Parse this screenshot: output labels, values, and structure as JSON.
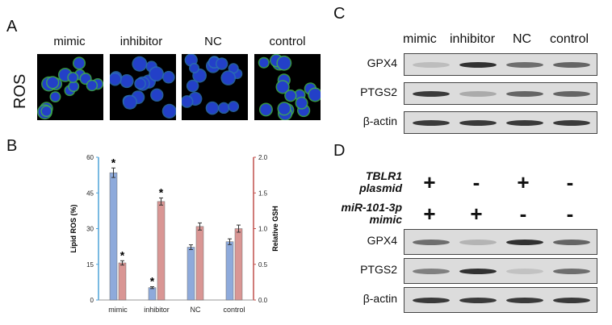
{
  "panel_a": {
    "letter": "A",
    "row_label": "ROS",
    "columns": [
      "mimic",
      "inhibitor",
      "NC",
      "control"
    ]
  },
  "panel_b": {
    "letter": "B"
  },
  "panel_c": {
    "letter": "C",
    "columns": [
      "mimic",
      "inhibitor",
      "NC",
      "control"
    ],
    "rows": [
      {
        "label": "GPX4",
        "band_intensity": [
          0.15,
          0.95,
          0.6,
          0.65
        ]
      },
      {
        "label": "PTGS2",
        "band_intensity": [
          0.9,
          0.25,
          0.65,
          0.65
        ]
      },
      {
        "label": "β-actin",
        "band_intensity": [
          0.9,
          0.9,
          0.9,
          0.9
        ]
      }
    ]
  },
  "panel_d": {
    "letter": "D",
    "conditions": [
      {
        "label_line1": "TBLR1",
        "label_line2": "plasmid",
        "signs": [
          "+",
          "-",
          "+",
          "-"
        ]
      },
      {
        "label_line1": "miR-101-3p",
        "label_line2": "mimic",
        "signs": [
          "+",
          "+",
          "-",
          "-"
        ]
      }
    ],
    "rows": [
      {
        "label": "GPX4",
        "band_intensity": [
          0.6,
          0.2,
          0.95,
          0.65
        ]
      },
      {
        "label": "PTGS2",
        "band_intensity": [
          0.5,
          0.95,
          0.12,
          0.6
        ]
      },
      {
        "label": "β-actin",
        "band_intensity": [
          0.9,
          0.9,
          0.9,
          0.9
        ]
      }
    ]
  },
  "chart_data": {
    "type": "bar",
    "categories": [
      "mimic",
      "inhibitor",
      "NC",
      "control"
    ],
    "series": [
      {
        "values": [
          53.5,
          5.2,
          22.2,
          24.5
        ],
        "errors": [
          2.0,
          0.4,
          1.0,
          1.2
        ],
        "color": "#8eaadb",
        "axis": "left",
        "stars": [
          true,
          true,
          false,
          false
        ]
      },
      {
        "values": [
          0.52,
          1.38,
          1.03,
          1.0
        ],
        "errors": [
          0.03,
          0.05,
          0.05,
          0.05
        ],
        "color": "#d99694",
        "axis": "right",
        "stars": [
          true,
          true,
          false,
          false
        ]
      }
    ],
    "ylabel": "Lipid ROS (%)",
    "ylabel_right": "Relative GSH",
    "ylim": [
      0,
      60
    ],
    "ylim_right": [
      0,
      2.0
    ],
    "yticks": [
      "0",
      "15",
      "30",
      "45",
      "60"
    ],
    "yticks_right": [
      "0.0",
      "0.5",
      "1.0",
      "1.5",
      "2.0"
    ],
    "star_symbol": "*",
    "left_axis_color": "#4fa3d9",
    "right_axis_color": "#c0504d"
  }
}
